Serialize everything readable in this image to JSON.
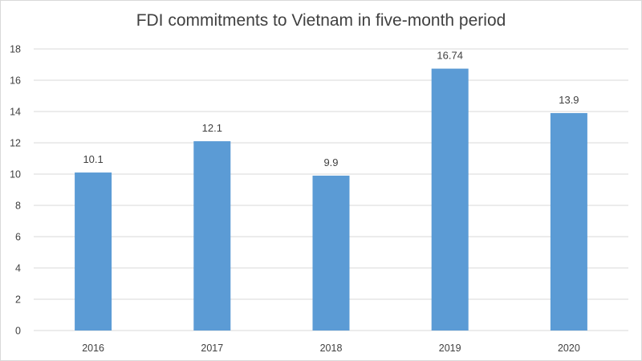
{
  "chart_data": {
    "type": "bar",
    "title": "FDI commitments to Vietnam in five-month period",
    "categories": [
      "2016",
      "2017",
      "2018",
      "2019",
      "2020"
    ],
    "values": [
      10.1,
      12.1,
      9.9,
      16.74,
      13.9
    ],
    "data_labels": [
      "10.1",
      "12.1",
      "9.9",
      "16.74",
      "13.9"
    ],
    "y_ticks": [
      "0",
      "2",
      "4",
      "6",
      "8",
      "10",
      "12",
      "14",
      "16",
      "18"
    ],
    "ylim": [
      0,
      18
    ],
    "xlabel": "",
    "ylabel": "",
    "grid": true,
    "legend": "none",
    "bar_color": "#5b9bd5",
    "grid_color": "#d9d9d9"
  }
}
